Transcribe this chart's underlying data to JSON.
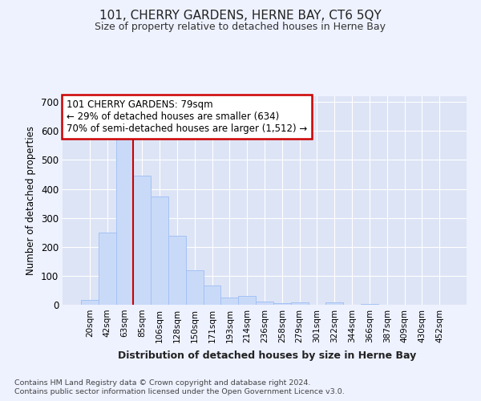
{
  "title": "101, CHERRY GARDENS, HERNE BAY, CT6 5QY",
  "subtitle": "Size of property relative to detached houses in Herne Bay",
  "xlabel": "Distribution of detached houses by size in Herne Bay",
  "ylabel": "Number of detached properties",
  "categories": [
    "20sqm",
    "42sqm",
    "63sqm",
    "85sqm",
    "106sqm",
    "128sqm",
    "150sqm",
    "171sqm",
    "193sqm",
    "214sqm",
    "236sqm",
    "258sqm",
    "279sqm",
    "301sqm",
    "322sqm",
    "344sqm",
    "366sqm",
    "387sqm",
    "409sqm",
    "430sqm",
    "452sqm"
  ],
  "values": [
    18,
    248,
    585,
    445,
    375,
    238,
    120,
    67,
    25,
    30,
    12,
    5,
    8,
    0,
    9,
    0,
    2,
    0,
    1,
    0,
    1
  ],
  "bar_color": "#c9daf8",
  "bar_edge_color": "#a4c2f4",
  "vline_pos": 3.0,
  "vline_color": "#cc0000",
  "annotation_text": "101 CHERRY GARDENS: 79sqm\n← 29% of detached houses are smaller (634)\n70% of semi-detached houses are larger (1,512) →",
  "annotation_box_color": "#ffffff",
  "annotation_box_edge_color": "#cc0000",
  "background_color": "#eef2ff",
  "plot_bg_color": "#dde4f5",
  "grid_color": "#ffffff",
  "ylim": [
    0,
    720
  ],
  "yticks": [
    0,
    100,
    200,
    300,
    400,
    500,
    600,
    700
  ],
  "footnote1": "Contains HM Land Registry data © Crown copyright and database right 2024.",
  "footnote2": "Contains public sector information licensed under the Open Government Licence v3.0."
}
